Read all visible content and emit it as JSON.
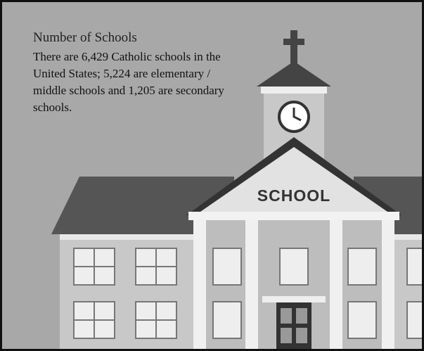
{
  "title": "Number of Schools",
  "body": "There are 6,429 Catholic schools in the United States; 5,224 are elementary / middle schools and 1,205 are secondary schools.",
  "sign": "SCHOOL"
}
